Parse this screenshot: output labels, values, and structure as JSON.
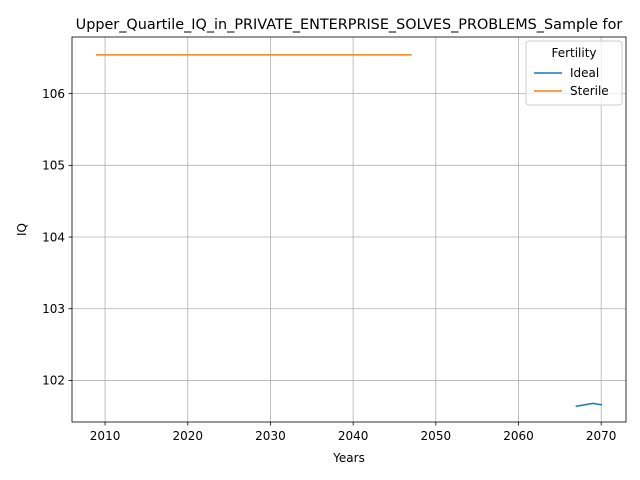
{
  "chart_data": {
    "type": "line",
    "title": "Upper_Quartile_IQ_in_PRIVATE_ENTERPRISE_SOLVES_PROBLEMS_Sample for",
    "xlabel": "Years",
    "ylabel": "IQ",
    "xlim": [
      2006,
      2073
    ],
    "ylim": [
      101.42,
      106.79
    ],
    "xticks": [
      2010,
      2020,
      2030,
      2040,
      2050,
      2060,
      2070
    ],
    "yticks": [
      102,
      103,
      104,
      105,
      106
    ],
    "grid": true,
    "legend": {
      "title": "Fertility",
      "placement": "top-right"
    },
    "series": [
      {
        "name": "Ideal",
        "color": "#1f77b4",
        "x": [
          2067,
          2069,
          2070
        ],
        "y": [
          101.64,
          101.68,
          101.66
        ]
      },
      {
        "name": "Sterile",
        "color": "#ff7f0e",
        "x": [
          2009,
          2047
        ],
        "y": [
          106.54,
          106.54
        ]
      }
    ]
  }
}
